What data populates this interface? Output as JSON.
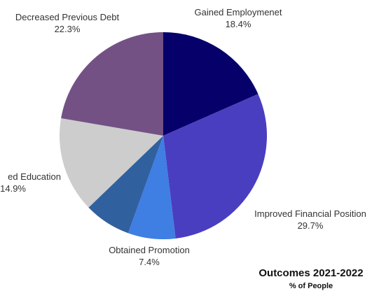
{
  "chart_data": {
    "type": "pie",
    "title": "Outcomes 2021-2022",
    "subtitle": "% of People",
    "start_angle_deg": 0,
    "direction": "clockwise",
    "slices": [
      {
        "label": "Gained Employmenet",
        "value": 18.4,
        "value_label": "18.4%",
        "color": "#06006b"
      },
      {
        "label": "Improved Financial Position",
        "value": 29.7,
        "value_label": "29.7%",
        "color": "#4a3ec0"
      },
      {
        "label": "Obtained Promotion",
        "value": 7.4,
        "value_label": "7.4%",
        "color": "#3f7ee3"
      },
      {
        "label": "",
        "value": 7.3,
        "value_label": "",
        "color": "#30619e"
      },
      {
        "label": "ed Education",
        "value": 14.9,
        "value_label": "14.9%",
        "color": "#cdcdcd"
      },
      {
        "label": "Decreased Previous Debt",
        "value": 22.3,
        "value_label": "22.3%",
        "color": "#735185"
      }
    ],
    "legend": "none"
  }
}
